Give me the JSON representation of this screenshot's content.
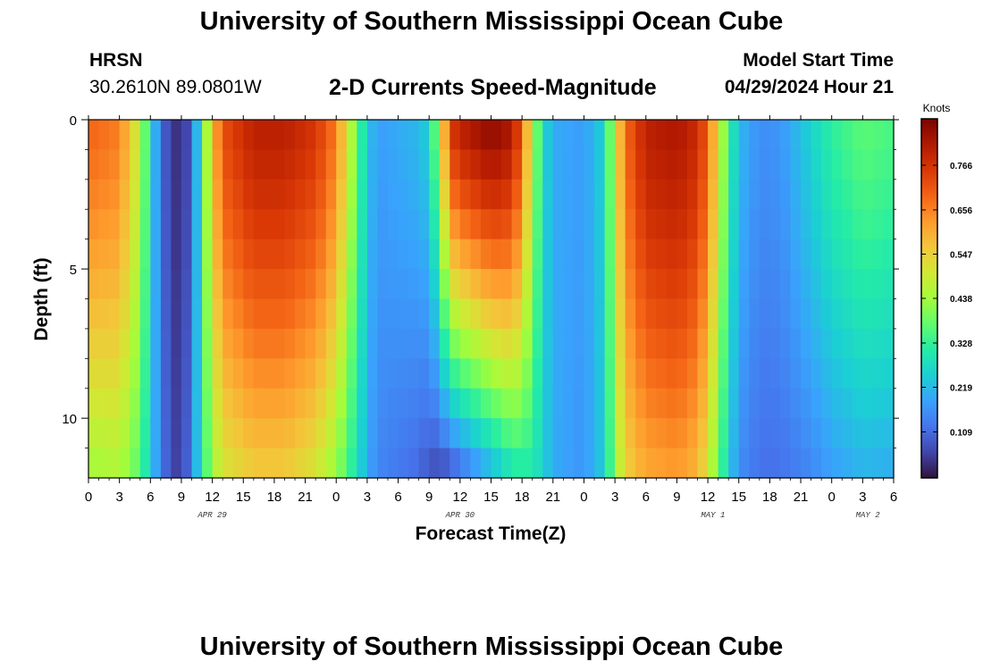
{
  "header": {
    "title": "University of Southern Mississippi Ocean Cube",
    "station": "HRSN",
    "coords": "30.2610N  89.0801W",
    "subtitle": "2-D Currents Speed-Magnitude",
    "model_start_label": "Model Start Time",
    "model_start_value": "04/29/2024 Hour 21"
  },
  "footer": {
    "title": "University of Southern Mississippi Ocean Cube"
  },
  "chart_data": {
    "type": "heatmap",
    "title": "2-D Currents Speed-Magnitude",
    "xlabel": "Forecast Time(Z)",
    "ylabel": "Depth (ft)",
    "x_unit": "hours since Apr 29 00Z",
    "x_range": [
      0,
      78
    ],
    "x_ticks": [
      0,
      3,
      6,
      9,
      12,
      15,
      18,
      21,
      24,
      27,
      30,
      33,
      36,
      39,
      42,
      45,
      48,
      51,
      54,
      57,
      60,
      63,
      66,
      69,
      72,
      75,
      78
    ],
    "x_tick_labels": [
      "0",
      "3",
      "6",
      "9",
      "12",
      "15",
      "18",
      "21",
      "0",
      "3",
      "6",
      "9",
      "12",
      "15",
      "18",
      "21",
      "0",
      "3",
      "6",
      "9",
      "12",
      "15",
      "18",
      "21",
      "0",
      "3",
      "6"
    ],
    "day_labels": [
      {
        "label": "APR 29",
        "hour": 12
      },
      {
        "label": "APR 30",
        "hour": 36
      },
      {
        "label": "MAY 1",
        "hour": 60.5
      },
      {
        "label": "MAY 2",
        "hour": 75.5
      }
    ],
    "y_range": [
      0,
      12
    ],
    "y_ticks": [
      0,
      5,
      10
    ],
    "y_tick_labels": [
      "0",
      "5",
      "10"
    ],
    "colorbar": {
      "label": "Knots",
      "min": 0.0,
      "max": 0.876,
      "ticks": [
        0.109,
        0.219,
        0.328,
        0.438,
        0.547,
        0.656,
        0.766
      ],
      "tick_labels": [
        "0.109",
        "0.219",
        "0.328",
        "0.438",
        "0.547",
        "0.656",
        "0.766"
      ],
      "colormap": [
        "#30123b",
        "#4145ab",
        "#4675ed",
        "#39a2fc",
        "#1bcfd4",
        "#24eca6",
        "#61fc6c",
        "#a4fc3b",
        "#d1e834",
        "#f3c63a",
        "#fe9b2d",
        "#f36315",
        "#d93806",
        "#b11901",
        "#7a0402"
      ]
    },
    "time_step_hours": 1,
    "depth_levels_ft": 12,
    "speed_keyframes": [
      {
        "hour": 0,
        "surface": 0.69,
        "bottom": 0.43
      },
      {
        "hour": 3,
        "surface": 0.66,
        "bottom": 0.45
      },
      {
        "hour": 5,
        "surface": 0.47,
        "bottom": 0.36
      },
      {
        "hour": 6,
        "surface": 0.28,
        "bottom": 0.25
      },
      {
        "hour": 7,
        "surface": 0.12,
        "bottom": 0.14
      },
      {
        "hour": 8,
        "surface": 0.05,
        "bottom": 0.07
      },
      {
        "hour": 9,
        "surface": 0.03,
        "bottom": 0.05
      },
      {
        "hour": 10,
        "surface": 0.1,
        "bottom": 0.15
      },
      {
        "hour": 11,
        "surface": 0.33,
        "bottom": 0.3
      },
      {
        "hour": 12,
        "surface": 0.57,
        "bottom": 0.43
      },
      {
        "hour": 13,
        "surface": 0.72,
        "bottom": 0.5
      },
      {
        "hour": 16,
        "surface": 0.8,
        "bottom": 0.55
      },
      {
        "hour": 19,
        "surface": 0.8,
        "bottom": 0.55
      },
      {
        "hour": 22,
        "surface": 0.76,
        "bottom": 0.5
      },
      {
        "hour": 24,
        "surface": 0.66,
        "bottom": 0.42
      },
      {
        "hour": 25,
        "surface": 0.52,
        "bottom": 0.35
      },
      {
        "hour": 26,
        "surface": 0.38,
        "bottom": 0.28
      },
      {
        "hour": 27,
        "surface": 0.24,
        "bottom": 0.2
      },
      {
        "hour": 28,
        "surface": 0.18,
        "bottom": 0.15
      },
      {
        "hour": 30,
        "surface": 0.2,
        "bottom": 0.13
      },
      {
        "hour": 32,
        "surface": 0.22,
        "bottom": 0.11
      },
      {
        "hour": 33,
        "surface": 0.26,
        "bottom": 0.08
      },
      {
        "hour": 34,
        "surface": 0.46,
        "bottom": 0.06
      },
      {
        "hour": 35,
        "surface": 0.75,
        "bottom": 0.07
      },
      {
        "hour": 36,
        "surface": 0.8,
        "bottom": 0.1
      },
      {
        "hour": 39,
        "surface": 0.86,
        "bottom": 0.2
      },
      {
        "hour": 41,
        "surface": 0.82,
        "bottom": 0.28
      },
      {
        "hour": 42,
        "surface": 0.7,
        "bottom": 0.3
      },
      {
        "hour": 43,
        "surface": 0.47,
        "bottom": 0.3
      },
      {
        "hour": 44,
        "surface": 0.28,
        "bottom": 0.26
      },
      {
        "hour": 45,
        "surface": 0.2,
        "bottom": 0.2
      },
      {
        "hour": 48,
        "surface": 0.18,
        "bottom": 0.17
      },
      {
        "hour": 50,
        "surface": 0.26,
        "bottom": 0.25
      },
      {
        "hour": 51,
        "surface": 0.5,
        "bottom": 0.42
      },
      {
        "hour": 52,
        "surface": 0.68,
        "bottom": 0.54
      },
      {
        "hour": 54,
        "surface": 0.8,
        "bottom": 0.6
      },
      {
        "hour": 57,
        "surface": 0.82,
        "bottom": 0.62
      },
      {
        "hour": 59,
        "surface": 0.78,
        "bottom": 0.58
      },
      {
        "hour": 60,
        "surface": 0.69,
        "bottom": 0.5
      },
      {
        "hour": 61,
        "surface": 0.52,
        "bottom": 0.38
      },
      {
        "hour": 62,
        "surface": 0.34,
        "bottom": 0.25
      },
      {
        "hour": 63,
        "surface": 0.22,
        "bottom": 0.16
      },
      {
        "hour": 65,
        "surface": 0.16,
        "bottom": 0.12
      },
      {
        "hour": 67,
        "surface": 0.17,
        "bottom": 0.12
      },
      {
        "hour": 68,
        "surface": 0.2,
        "bottom": 0.13
      },
      {
        "hour": 70,
        "surface": 0.26,
        "bottom": 0.15
      },
      {
        "hour": 72,
        "surface": 0.32,
        "bottom": 0.18
      },
      {
        "hour": 75,
        "surface": 0.37,
        "bottom": 0.21
      },
      {
        "hour": 78,
        "surface": 0.35,
        "bottom": 0.2
      }
    ]
  }
}
